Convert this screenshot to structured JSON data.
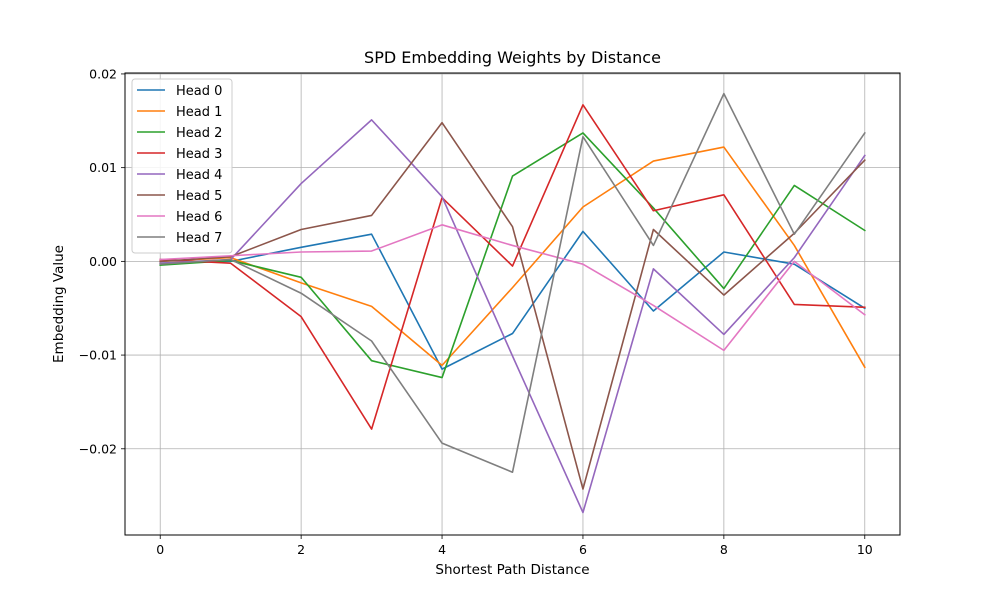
{
  "chart_data": {
    "type": "line",
    "title": "SPD Embedding Weights by Distance",
    "xlabel": "Shortest Path Distance",
    "ylabel": "Embedding Value",
    "xlim": [
      -0.5,
      10.5
    ],
    "ylim": [
      -0.0292,
      0.0201
    ],
    "xticks": [
      0,
      2,
      4,
      6,
      8,
      10
    ],
    "xtick_labels": [
      "0",
      "2",
      "4",
      "6",
      "8",
      "10"
    ],
    "yticks": [
      0.02,
      0.01,
      0.0,
      -0.01,
      -0.02
    ],
    "ytick_labels": [
      "0.02",
      "0.01",
      "0.00",
      "−0.01",
      "−0.02"
    ],
    "grid": true,
    "legend_position": "top-left",
    "x": [
      0,
      1,
      2,
      3,
      4,
      5,
      6,
      7,
      8,
      9,
      10
    ],
    "series": [
      {
        "name": "Head 0",
        "color": "#1f77b4",
        "values": [
          -0.0002,
          0.0,
          0.0015,
          0.0029,
          -0.0115,
          -0.0077,
          0.0032,
          -0.0053,
          0.001,
          -0.0003,
          -0.005
        ]
      },
      {
        "name": "Head 1",
        "color": "#ff7f0e",
        "values": [
          0.0,
          0.0004,
          -0.0023,
          -0.0048,
          -0.0111,
          -0.0028,
          0.0058,
          0.0107,
          0.0122,
          0.0017,
          -0.0113
        ]
      },
      {
        "name": "Head 2",
        "color": "#2ca02c",
        "values": [
          -0.0004,
          0.0001,
          -0.0017,
          -0.0106,
          -0.0124,
          0.0091,
          0.0137,
          0.0057,
          -0.0029,
          0.0081,
          0.0033
        ]
      },
      {
        "name": "Head 3",
        "color": "#d62728",
        "values": [
          0.0002,
          -0.0002,
          -0.0059,
          -0.0179,
          0.0068,
          -0.0005,
          0.0167,
          0.0054,
          0.0071,
          -0.0046,
          -0.0049
        ]
      },
      {
        "name": "Head 4",
        "color": "#9467bd",
        "values": [
          -0.0002,
          0.0002,
          0.0083,
          0.0151,
          0.0069,
          -0.0101,
          -0.0268,
          -0.0008,
          -0.0078,
          0.0004,
          0.0113
        ]
      },
      {
        "name": "Head 5",
        "color": "#8c564b",
        "values": [
          0.0,
          0.0005,
          0.0034,
          0.0049,
          0.0148,
          0.0037,
          -0.0243,
          0.0034,
          -0.0036,
          0.003,
          0.0108
        ]
      },
      {
        "name": "Head 6",
        "color": "#e377c2",
        "values": [
          0.0002,
          0.0006,
          0.001,
          0.0011,
          0.0039,
          0.0017,
          -0.0003,
          -0.0047,
          -0.0095,
          0.0,
          -0.0057
        ]
      },
      {
        "name": "Head 7",
        "color": "#7f7f7f",
        "values": [
          -0.0003,
          0.0002,
          -0.0034,
          -0.0085,
          -0.0194,
          -0.0225,
          0.0133,
          0.0017,
          0.0179,
          0.0029,
          0.0137
        ]
      }
    ]
  }
}
